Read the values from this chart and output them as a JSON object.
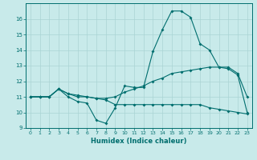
{
  "title": "",
  "xlabel": "Humidex (Indice chaleur)",
  "bg_color": "#c8eaea",
  "grid_color": "#aad4d4",
  "line_color": "#006e6e",
  "xlim": [
    -0.5,
    23.5
  ],
  "ylim": [
    9,
    17
  ],
  "yticks": [
    9,
    10,
    11,
    12,
    13,
    14,
    15,
    16
  ],
  "xticks": [
    0,
    1,
    2,
    3,
    4,
    5,
    6,
    7,
    8,
    9,
    10,
    11,
    12,
    13,
    14,
    15,
    16,
    17,
    18,
    19,
    20,
    21,
    22,
    23
  ],
  "line1_x": [
    0,
    1,
    2,
    3,
    4,
    5,
    6,
    7,
    8,
    9,
    10,
    11,
    12,
    13,
    14,
    15,
    16,
    17,
    18,
    19,
    20,
    21,
    22,
    23
  ],
  "line1_y": [
    11.0,
    11.0,
    11.0,
    11.5,
    11.0,
    10.7,
    10.6,
    9.5,
    9.3,
    10.3,
    11.7,
    11.6,
    11.6,
    13.9,
    15.3,
    16.5,
    16.5,
    16.1,
    14.4,
    14.0,
    12.9,
    12.8,
    12.4,
    10.0
  ],
  "line2_x": [
    0,
    1,
    2,
    3,
    4,
    5,
    6,
    7,
    8,
    9,
    10,
    11,
    12,
    13,
    14,
    15,
    16,
    17,
    18,
    19,
    20,
    21,
    22,
    23
  ],
  "line2_y": [
    11.0,
    11.0,
    11.0,
    11.5,
    11.2,
    11.1,
    11.0,
    10.9,
    10.9,
    11.0,
    11.3,
    11.5,
    11.7,
    12.0,
    12.2,
    12.5,
    12.6,
    12.7,
    12.8,
    12.9,
    12.9,
    12.9,
    12.5,
    11.0
  ],
  "line3_x": [
    0,
    1,
    2,
    3,
    4,
    5,
    6,
    7,
    8,
    9,
    10,
    11,
    12,
    13,
    14,
    15,
    16,
    17,
    18,
    19,
    20,
    21,
    22,
    23
  ],
  "line3_y": [
    11.0,
    11.0,
    11.0,
    11.5,
    11.2,
    11.0,
    11.0,
    10.9,
    10.8,
    10.5,
    10.5,
    10.5,
    10.5,
    10.5,
    10.5,
    10.5,
    10.5,
    10.5,
    10.5,
    10.3,
    10.2,
    10.1,
    10.0,
    9.9
  ]
}
